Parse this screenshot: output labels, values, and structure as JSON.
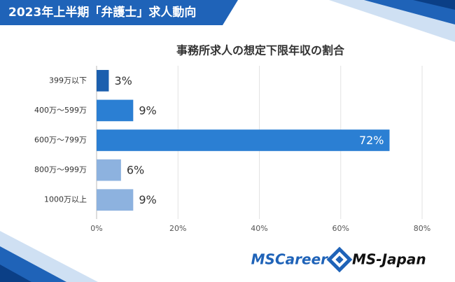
{
  "chart_data": {
    "type": "bar",
    "orientation": "horizontal",
    "title": "2023年上半期「弁護士」求人動向",
    "subtitle": "事務所求人の想定下限年収の割合",
    "categories": [
      "399万以下",
      "400万～599万",
      "600万～799万",
      "800万～999万",
      "1000万以上"
    ],
    "values": [
      3,
      9,
      72,
      6,
      9
    ],
    "value_labels": [
      "3%",
      "9%",
      "72%",
      "6%",
      "9%"
    ],
    "colors": [
      "#1b5fae",
      "#2b7fd3",
      "#2b7fd3",
      "#8db2df",
      "#8db2df"
    ],
    "xlim": [
      0,
      80
    ],
    "xticks": [
      {
        "value": 0,
        "label": "0%"
      },
      {
        "value": 20,
        "label": "20%"
      },
      {
        "value": 40,
        "label": "40%"
      },
      {
        "value": 60,
        "label": "60%"
      },
      {
        "value": 80,
        "label": "80%"
      }
    ],
    "grid": true
  },
  "logos": [
    "MSCareer",
    "MS-Japan"
  ]
}
